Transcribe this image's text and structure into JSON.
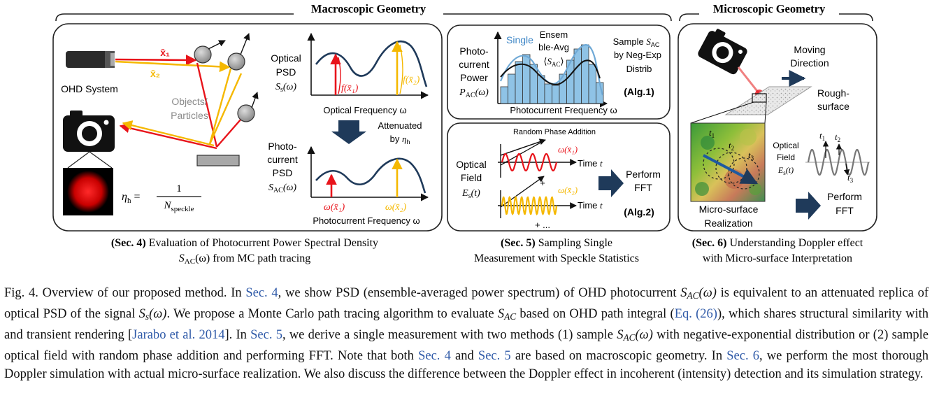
{
  "headers": {
    "macroscopic": "Macroscopic Geometry",
    "microscopic": "Microscopic Geometry"
  },
  "panel4": {
    "ohd_system": "OHD System",
    "objects_particles_1": "Objects/",
    "objects_particles_2": "Particles",
    "x1": "x̄₁",
    "x2": "x̄₂",
    "eta_lhs": "ηh = ",
    "eta_num": "1",
    "eta_den": "Nspeckle",
    "optical_psd_1": "Optical",
    "optical_psd_2": "PSD",
    "optical_psd_3": "Ss(ω)",
    "f_x1": "f(x̄₁)",
    "f_x2": "f(x̄₂)",
    "optical_freq": "Optical Frequency ω",
    "attenuated_1": "Attenuated",
    "attenuated_2": "by ηh",
    "photo_psd_1": "Photo-",
    "photo_psd_2": "current",
    "photo_psd_3": "PSD",
    "photo_psd_4": "SAC(ω)",
    "w_x1": "ω(x̄₁)",
    "w_x2": "ω(x̄₂)",
    "photocurrent_freq": "Photocurrent Frequency ω",
    "caption_bold": "(Sec. 4)",
    "caption_1": " Evaluation of Photocurrent Power Spectral Density",
    "caption_2": "SAC(ω) from MC path tracing"
  },
  "panel5a": {
    "power_1": "Photo-",
    "power_2": "current",
    "power_3": "Power",
    "power_4": "PAC(ω)",
    "single": "Single",
    "ensem_1": "Ensem",
    "ensem_2": "ble-Avg",
    "ensem_3": "⟨SAC⟩",
    "sample_1": "Sample SAC",
    "sample_2": "by Neg-Exp",
    "sample_3": "Distrib",
    "alg1": "(Alg.1)",
    "xlabel": "Photocurrent Frequency ω"
  },
  "panel5b": {
    "random_phase": "Random Phase Addition",
    "field_1": "Optical",
    "field_2": "Field",
    "field_3": "Es(t)",
    "w1": "ω(x̄₁)",
    "w2": "ω(x̄₂)",
    "time_t1": "Time t",
    "time_t2": "Time t",
    "plus": "+",
    "plus_dots": "+ ...",
    "perform_1": "Perform",
    "perform_2": "FFT",
    "alg2": "(Alg.2)",
    "caption_bold": "(Sec. 5)",
    "caption_1": " Sampling Single",
    "caption_2": "Measurement with Speckle Statistics"
  },
  "panel6": {
    "moving_1": "Moving",
    "moving_2": "Direction",
    "rough_1": "Rough-",
    "rough_2": "surface",
    "field_1": "Optical",
    "field_2": "Field",
    "field_3": "Es(t)",
    "t1": "t1",
    "t2": "t2",
    "t3": "t3",
    "micro_1": "Micro-surface",
    "micro_2": "Realization",
    "perform_1": "Perform",
    "perform_2": "FFT",
    "caption_bold": "(Sec. 6)",
    "caption_1": " Understanding Doppler effect",
    "caption_2": "with Micro-surface Interpretation"
  },
  "caption": {
    "lead": "Fig. 4.  Overview of our proposed method. In ",
    "sec4a": "Sec. 4",
    "p1": ", we show PSD (ensemble-averaged power spectrum) of OHD photocurrent ",
    "sac1": "SAC(ω)",
    "p2": " is equivalent to an attenuated replica of optical PSD of the signal ",
    "ss": "Ss(ω)",
    "p3": ". We propose a Monte Carlo path tracing algorithm to evaluate ",
    "sac2": "SAC",
    "p4": " based on OHD path integral (",
    "eq": "Eq. (26)",
    "p5": "), which shares structural similarity with and transient rendering [",
    "cite": "Jarabo et al. 2014",
    "p6": "]. In ",
    "sec5a": "Sec. 5",
    "p7": ", we derive a single measurement with two methods (1) sample ",
    "sac3": "SAC(ω)",
    "p8": " with negative-exponential distribution or (2) sample optical field with random phase addition and performing FFT. Note that both ",
    "sec4b": "Sec. 4",
    "p9": " and ",
    "sec5b": "Sec. 5",
    "p10": " are based on macroscopic geometry. In ",
    "sec6": "Sec. 6",
    "p11": ", we perform the most thorough Doppler simulation with actual micro-surface realization. We also discuss the difference between the Doppler effect in incoherent (intensity) detection and its simulation strategy."
  },
  "colors": {
    "red": "#e8141b",
    "yellow": "#f5b800",
    "navy": "#1f3a5a",
    "hist_fill": "#8fc3e6",
    "panel_border": "#222222",
    "link": "#2f5aa8"
  }
}
